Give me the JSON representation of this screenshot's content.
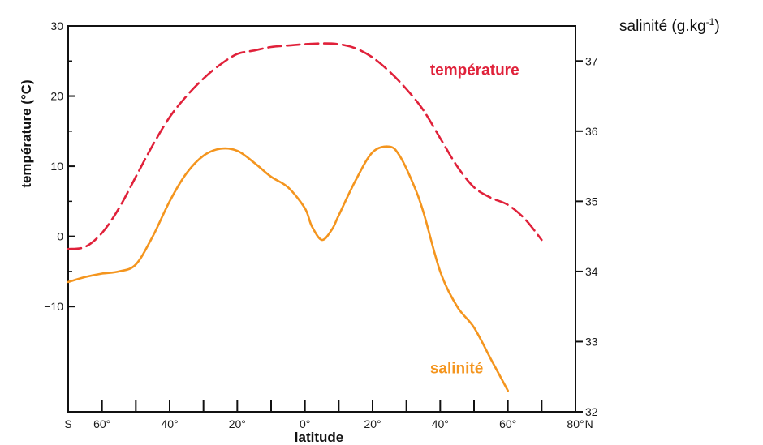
{
  "chart_data": {
    "type": "line",
    "xlabel": "latitude",
    "ylabel_left": "température (°C)",
    "ylabel_right": "salinité (g.kg-1)",
    "ylabel_right_parts": [
      "salinité (g.kg",
      "-1",
      ")"
    ],
    "xlim": [
      -70,
      80
    ],
    "ylim_left": [
      -25,
      30
    ],
    "ylim_right": [
      32,
      37.5
    ],
    "x_tick_positions": [
      -60,
      -50,
      -40,
      -30,
      -20,
      -10,
      0,
      10,
      20,
      30,
      40,
      50,
      60,
      70,
      80
    ],
    "x_tick_labels": [
      {
        "x": -70,
        "label": "S"
      },
      {
        "x": -60,
        "label": "60°"
      },
      {
        "x": -40,
        "label": "40°"
      },
      {
        "x": -20,
        "label": "20°"
      },
      {
        "x": 0,
        "label": "0°"
      },
      {
        "x": 20,
        "label": "20°"
      },
      {
        "x": 40,
        "label": "40°"
      },
      {
        "x": 60,
        "label": "60°"
      },
      {
        "x": 80,
        "label": "80°"
      },
      {
        "x": 84,
        "label": "N"
      }
    ],
    "y_left_ticks": [
      {
        "v": 30,
        "label": "30"
      },
      {
        "v": 20,
        "label": "20"
      },
      {
        "v": 10,
        "label": "10"
      },
      {
        "v": 0,
        "label": "0"
      },
      {
        "v": -10,
        "label": "−10"
      }
    ],
    "y_left_minor": [
      25,
      15,
      5,
      -5
    ],
    "y_right_ticks": [
      {
        "v": 37,
        "label": "37"
      },
      {
        "v": 36,
        "label": "36"
      },
      {
        "v": 35,
        "label": "35"
      },
      {
        "v": 34,
        "label": "34"
      },
      {
        "v": 33,
        "label": "33"
      },
      {
        "v": 32,
        "label": "32"
      }
    ],
    "series": [
      {
        "name": "température",
        "axis": "left",
        "color": "#e0213a",
        "style": "dashed",
        "x": [
          -70,
          -65,
          -60,
          -55,
          -50,
          -45,
          -40,
          -35,
          -30,
          -25,
          -20,
          -15,
          -10,
          -5,
          0,
          5,
          10,
          15,
          20,
          25,
          30,
          35,
          40,
          45,
          50,
          55,
          60,
          65,
          70
        ],
        "values": [
          -1.8,
          -1.5,
          0.5,
          4,
          8.5,
          13,
          17,
          20,
          22.5,
          24.5,
          26,
          26.5,
          27,
          27.2,
          27.4,
          27.5,
          27.4,
          26.8,
          25.5,
          23.5,
          21,
          18,
          14,
          10,
          7,
          5.5,
          4.5,
          2.5,
          -0.5
        ]
      },
      {
        "name": "salinité",
        "axis": "right",
        "color": "#f4951e",
        "style": "solid",
        "x": [
          -70,
          -65,
          -60,
          -55,
          -50,
          -45,
          -40,
          -35,
          -30,
          -25,
          -20,
          -15,
          -10,
          -5,
          0,
          2,
          5,
          8,
          10,
          15,
          20,
          25,
          28,
          32,
          35,
          40,
          45,
          50,
          55,
          60
        ],
        "values": [
          33.85,
          33.92,
          33.97,
          34.0,
          34.1,
          34.5,
          35.0,
          35.4,
          35.65,
          35.75,
          35.72,
          35.55,
          35.35,
          35.2,
          34.9,
          34.65,
          34.45,
          34.6,
          34.8,
          35.3,
          35.7,
          35.78,
          35.65,
          35.25,
          34.85,
          34.0,
          33.5,
          33.2,
          32.75,
          32.3
        ]
      }
    ],
    "series_labels": [
      {
        "text": "température",
        "x": 37,
        "axis": "left",
        "v": 23,
        "color": "#e0213a"
      },
      {
        "text": "salinité",
        "x": 37,
        "axis": "right",
        "v": 32.55,
        "color": "#f4951e"
      }
    ]
  }
}
